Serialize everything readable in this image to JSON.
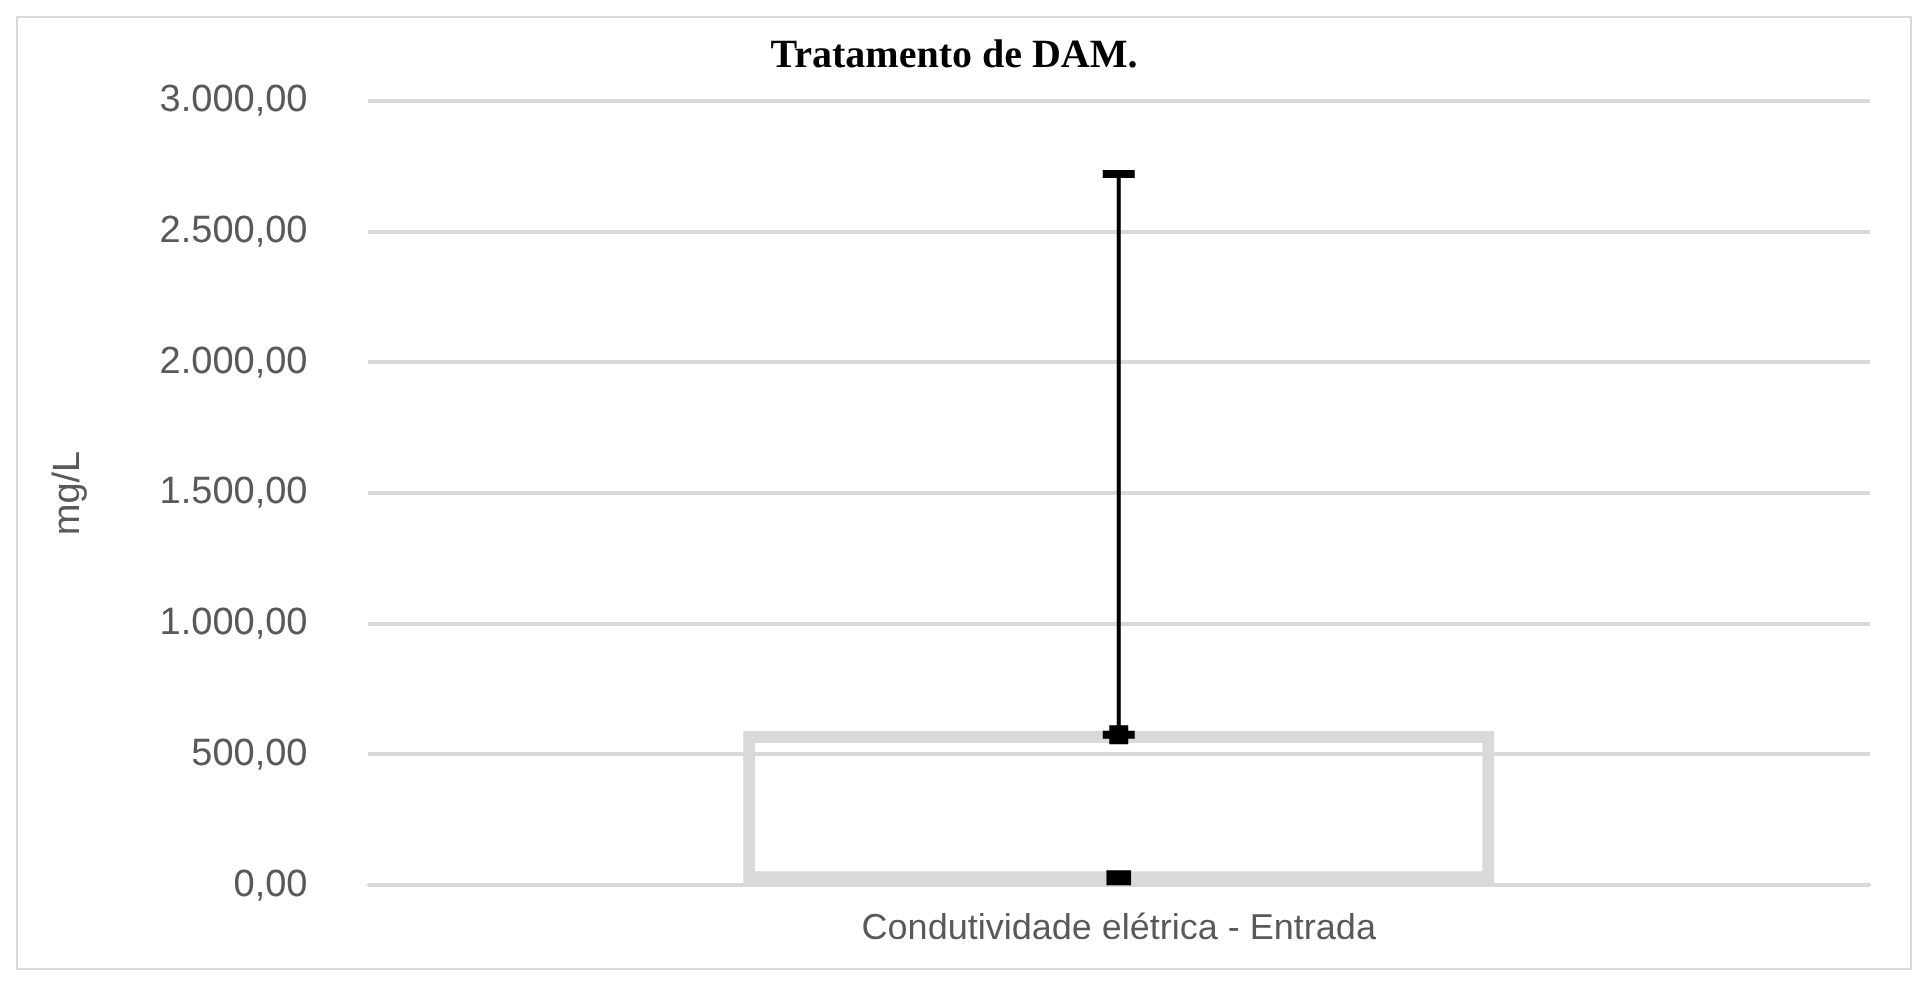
{
  "chart_data": {
    "type": "bar",
    "title": "Tratamento de DAM.",
    "ylabel": "mg/L",
    "categories": [
      "Condutividade elétrica - Entrada"
    ],
    "series": [
      {
        "type": "bar",
        "color": "#d9d9d9",
        "values": [
          590
        ]
      },
      {
        "type": "scatter",
        "color": "#000000",
        "x": [
          "Condutividade elétrica - Entrada"
        ],
        "values": [
          575
        ],
        "errors": [
          [
            575,
            2720
          ]
        ],
        "marker": "square"
      },
      {
        "type": "scatter",
        "color": "#000000",
        "x": [
          "Condutividade elétrica - Entrada"
        ],
        "values": [
          10
        ],
        "marker": "square"
      }
    ],
    "ylim": [
      0,
      3000
    ],
    "yticks": [
      {
        "value": 0,
        "label": "0,00"
      },
      {
        "value": 500,
        "label": "500,00"
      },
      {
        "value": 1000,
        "label": "1.000,00"
      },
      {
        "value": 1500,
        "label": "1.500,00"
      },
      {
        "value": 2000,
        "label": "2.000,00"
      },
      {
        "value": 2500,
        "label": "2.500,00"
      },
      {
        "value": 3000,
        "label": "3.000,00"
      }
    ],
    "grid": "y",
    "legend": false
  }
}
